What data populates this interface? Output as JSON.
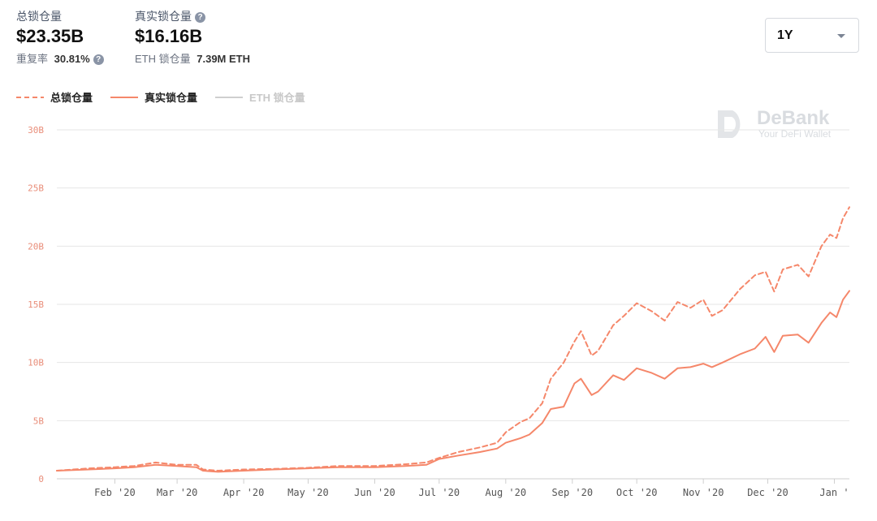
{
  "header": {
    "total_tvl_label": "总锁仓量",
    "total_tvl_value": "$23.35B",
    "real_tvl_label": "真实锁仓量",
    "real_tvl_value": "$16.16B",
    "help_glyph": "?",
    "repeat_rate_label": "重复率",
    "repeat_rate_value": "30.81%",
    "eth_locked_label": "ETH 锁仓量",
    "eth_locked_value": "7.39M ETH"
  },
  "range_selector": {
    "selected": "1Y"
  },
  "logo": {
    "brand": "DeBank",
    "tagline": "Your DeFi Wallet"
  },
  "colors": {
    "accent": "#f5876a",
    "grid": "#e6e6e6",
    "disabled": "#cfcfcf",
    "tick_y": "#e98e7a"
  },
  "chart_data": {
    "type": "line",
    "x_unit": "date",
    "x_range": [
      "2020-01-05",
      "2021-01-08"
    ],
    "ylim": [
      0,
      30
    ],
    "y_ticks": [
      "0",
      "5B",
      "10B",
      "15B",
      "20B",
      "25B",
      "30B"
    ],
    "y_tick_values": [
      0,
      5,
      10,
      15,
      20,
      25,
      30
    ],
    "x_ticks": [
      "Feb '20",
      "Mar '20",
      "Apr '20",
      "May '20",
      "Jun '20",
      "Jul '20",
      "Aug '20",
      "Sep '20",
      "Oct '20",
      "Nov '20",
      "Dec '20",
      "Jan '"
    ],
    "x_tick_dates": [
      "2020-02-01",
      "2020-03-01",
      "2020-04-01",
      "2020-05-01",
      "2020-06-01",
      "2020-07-01",
      "2020-08-01",
      "2020-09-01",
      "2020-10-01",
      "2020-11-01",
      "2020-12-01",
      "2021-01-01"
    ],
    "grid": true,
    "legend_position": "top-left",
    "series": [
      {
        "name": "总锁仓量",
        "style": "dashed",
        "visible": true,
        "points": [
          [
            "2020-01-05",
            0.7
          ],
          [
            "2020-01-20",
            0.9
          ],
          [
            "2020-02-01",
            1.0
          ],
          [
            "2020-02-10",
            1.1
          ],
          [
            "2020-02-20",
            1.4
          ],
          [
            "2020-03-01",
            1.2
          ],
          [
            "2020-03-10",
            1.2
          ],
          [
            "2020-03-13",
            0.8
          ],
          [
            "2020-03-20",
            0.7
          ],
          [
            "2020-04-01",
            0.8
          ],
          [
            "2020-04-15",
            0.85
          ],
          [
            "2020-05-01",
            0.95
          ],
          [
            "2020-05-15",
            1.1
          ],
          [
            "2020-06-01",
            1.1
          ],
          [
            "2020-06-15",
            1.25
          ],
          [
            "2020-06-25",
            1.4
          ],
          [
            "2020-07-01",
            1.8
          ],
          [
            "2020-07-10",
            2.3
          ],
          [
            "2020-07-20",
            2.7
          ],
          [
            "2020-07-28",
            3.1
          ],
          [
            "2020-08-01",
            4.0
          ],
          [
            "2020-08-08",
            4.9
          ],
          [
            "2020-08-12",
            5.2
          ],
          [
            "2020-08-18",
            6.5
          ],
          [
            "2020-08-22",
            8.6
          ],
          [
            "2020-08-28",
            10.0
          ],
          [
            "2020-09-02",
            11.8
          ],
          [
            "2020-09-05",
            12.7
          ],
          [
            "2020-09-10",
            10.6
          ],
          [
            "2020-09-13",
            11.0
          ],
          [
            "2020-09-20",
            13.2
          ],
          [
            "2020-09-25",
            14.0
          ],
          [
            "2020-10-01",
            15.1
          ],
          [
            "2020-10-08",
            14.4
          ],
          [
            "2020-10-14",
            13.6
          ],
          [
            "2020-10-20",
            15.2
          ],
          [
            "2020-10-26",
            14.7
          ],
          [
            "2020-11-01",
            15.4
          ],
          [
            "2020-11-05",
            14.0
          ],
          [
            "2020-11-10",
            14.5
          ],
          [
            "2020-11-18",
            16.3
          ],
          [
            "2020-11-25",
            17.5
          ],
          [
            "2020-11-30",
            17.8
          ],
          [
            "2020-12-04",
            16.1
          ],
          [
            "2020-12-08",
            18.0
          ],
          [
            "2020-12-15",
            18.4
          ],
          [
            "2020-12-20",
            17.4
          ],
          [
            "2020-12-26",
            20.0
          ],
          [
            "2020-12-30",
            21.0
          ],
          [
            "2021-01-02",
            20.7
          ],
          [
            "2021-01-05",
            22.4
          ],
          [
            "2021-01-08",
            23.35
          ]
        ]
      },
      {
        "name": "真实锁仓量",
        "style": "solid",
        "visible": true,
        "points": [
          [
            "2020-01-05",
            0.7
          ],
          [
            "2020-01-20",
            0.8
          ],
          [
            "2020-02-01",
            0.9
          ],
          [
            "2020-02-10",
            1.0
          ],
          [
            "2020-02-20",
            1.2
          ],
          [
            "2020-03-01",
            1.1
          ],
          [
            "2020-03-10",
            1.0
          ],
          [
            "2020-03-13",
            0.7
          ],
          [
            "2020-03-20",
            0.6
          ],
          [
            "2020-04-01",
            0.7
          ],
          [
            "2020-04-15",
            0.8
          ],
          [
            "2020-05-01",
            0.9
          ],
          [
            "2020-05-15",
            1.0
          ],
          [
            "2020-06-01",
            1.0
          ],
          [
            "2020-06-15",
            1.1
          ],
          [
            "2020-06-25",
            1.2
          ],
          [
            "2020-07-01",
            1.7
          ],
          [
            "2020-07-10",
            2.0
          ],
          [
            "2020-07-20",
            2.3
          ],
          [
            "2020-07-28",
            2.6
          ],
          [
            "2020-08-01",
            3.1
          ],
          [
            "2020-08-08",
            3.5
          ],
          [
            "2020-08-12",
            3.8
          ],
          [
            "2020-08-18",
            4.8
          ],
          [
            "2020-08-22",
            6.0
          ],
          [
            "2020-08-28",
            6.2
          ],
          [
            "2020-09-02",
            8.2
          ],
          [
            "2020-09-05",
            8.6
          ],
          [
            "2020-09-10",
            7.2
          ],
          [
            "2020-09-13",
            7.5
          ],
          [
            "2020-09-20",
            8.9
          ],
          [
            "2020-09-25",
            8.5
          ],
          [
            "2020-10-01",
            9.5
          ],
          [
            "2020-10-08",
            9.1
          ],
          [
            "2020-10-14",
            8.6
          ],
          [
            "2020-10-20",
            9.5
          ],
          [
            "2020-10-26",
            9.6
          ],
          [
            "2020-11-01",
            9.9
          ],
          [
            "2020-11-05",
            9.6
          ],
          [
            "2020-11-10",
            10.0
          ],
          [
            "2020-11-18",
            10.7
          ],
          [
            "2020-11-25",
            11.2
          ],
          [
            "2020-11-30",
            12.2
          ],
          [
            "2020-12-04",
            10.9
          ],
          [
            "2020-12-08",
            12.3
          ],
          [
            "2020-12-15",
            12.4
          ],
          [
            "2020-12-20",
            11.7
          ],
          [
            "2020-12-26",
            13.4
          ],
          [
            "2020-12-30",
            14.3
          ],
          [
            "2021-01-02",
            13.9
          ],
          [
            "2021-01-05",
            15.4
          ],
          [
            "2021-01-08",
            16.16
          ]
        ]
      },
      {
        "name": "ETH 锁仓量",
        "style": "solid",
        "visible": false,
        "points": []
      }
    ]
  }
}
